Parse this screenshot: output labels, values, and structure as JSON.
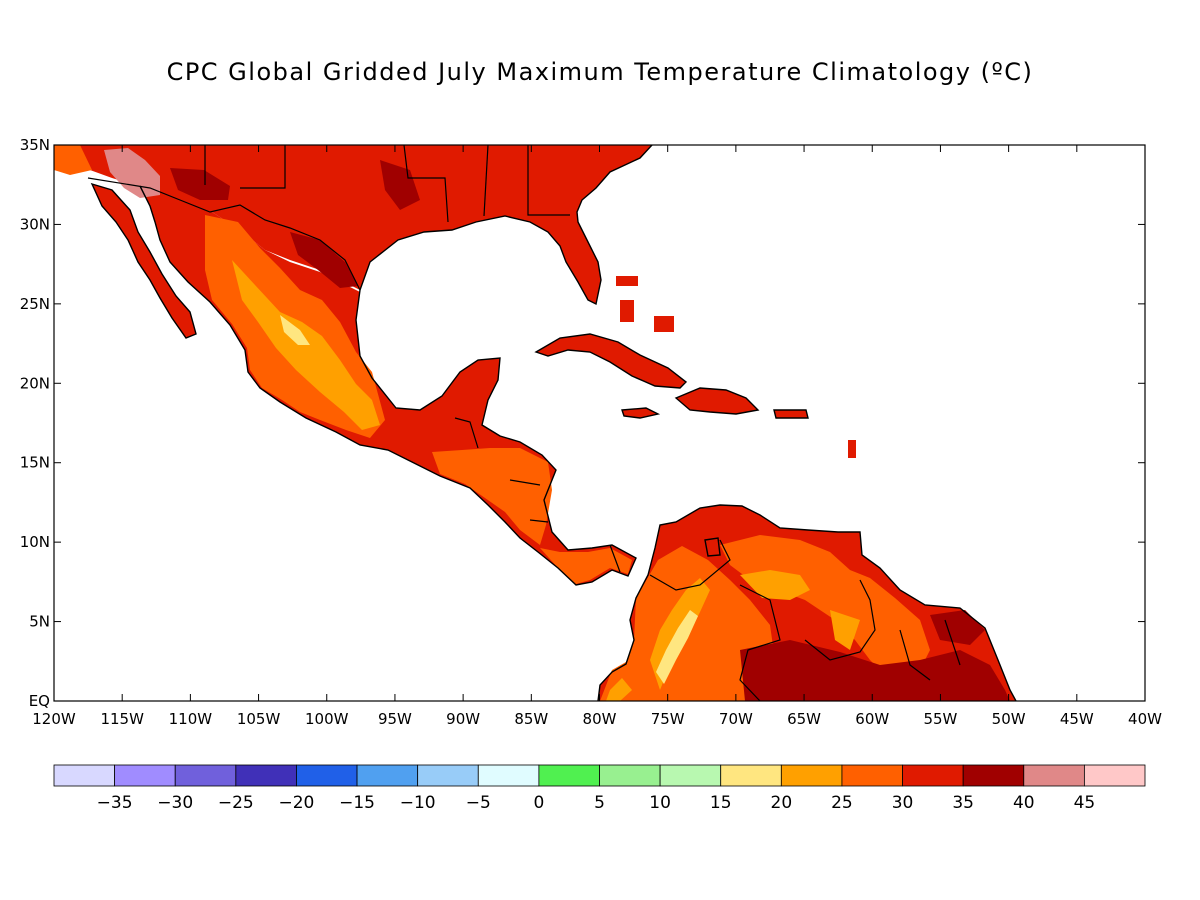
{
  "title": "CPC Global Gridded July Maximum Temperature Climatology (ºC)",
  "map": {
    "lon_range": [
      -120,
      -40
    ],
    "lat_range": [
      0,
      35
    ],
    "lon_ticks": [
      "120W",
      "115W",
      "110W",
      "105W",
      "100W",
      "95W",
      "90W",
      "85W",
      "80W",
      "75W",
      "70W",
      "65W",
      "60W",
      "55W",
      "50W",
      "45W",
      "40W"
    ],
    "lat_ticks": [
      "EQ",
      "5N",
      "10N",
      "15N",
      "20N",
      "25N",
      "30N",
      "35N"
    ]
  },
  "colorbar": {
    "colors": [
      "#d8d8ff",
      "#a08cff",
      "#7060dc",
      "#4030b8",
      "#2060e8",
      "#50a0f0",
      "#98ccf8",
      "#e0fcff",
      "#50f050",
      "#98f090",
      "#b8f8b0",
      "#ffe680",
      "#ffa000",
      "#ff6000",
      "#e01a00",
      "#a00000",
      "#e08888",
      "#ffc8c8"
    ],
    "labels": [
      "−35",
      "−30",
      "−25",
      "−20",
      "−15",
      "−10",
      "−5",
      "0",
      "5",
      "10",
      "15",
      "20",
      "25",
      "30",
      "35",
      "40",
      "45"
    ]
  }
}
